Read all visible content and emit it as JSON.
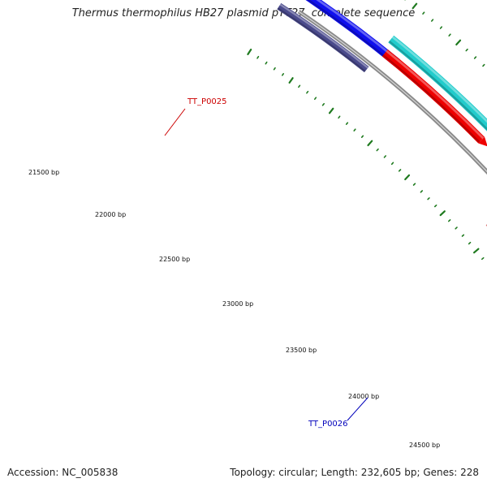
{
  "title": "Thermus thermophilus HB27 plasmid pTT27, complete sequence",
  "footer": {
    "accession": "Accession: NC_005838",
    "summary": "Topology: circular; Length: 232,605 bp; Genes: 228"
  },
  "colors": {
    "backbone": "#8a8a8a",
    "tick": "#1f7a1f",
    "gene_blue": "#1010ee",
    "gene_navy": "#4a4a8c",
    "gene_red": "#ee0000",
    "gene_cyan": "#22cccc",
    "gene_pink": "#ee8888",
    "label_red": "#cc0000",
    "label_blue": "#0000bb"
  },
  "ticks": [
    {
      "label": "21500 bp"
    },
    {
      "label": "22000 bp"
    },
    {
      "label": "22500 bp"
    },
    {
      "label": "23000 bp"
    },
    {
      "label": "23500 bp"
    },
    {
      "label": "24000 bp"
    },
    {
      "label": "24500 bp"
    }
  ],
  "genes": [
    {
      "name": "gene-blue-left",
      "color_key": "gene_blue"
    },
    {
      "name": "gene-navy-left",
      "color_key": "gene_navy"
    },
    {
      "name": "gene-cyan",
      "color_key": "gene_cyan"
    },
    {
      "name": "gene-red",
      "color_key": "gene_red"
    },
    {
      "name": "gene-blue-right",
      "color_key": "gene_blue"
    },
    {
      "name": "gene-pink",
      "color_key": "gene_pink"
    }
  ],
  "gene_labels": [
    {
      "text": "TT_P0025",
      "color_key": "label_red"
    },
    {
      "text": "TT_P0026",
      "color_key": "label_blue"
    }
  ]
}
